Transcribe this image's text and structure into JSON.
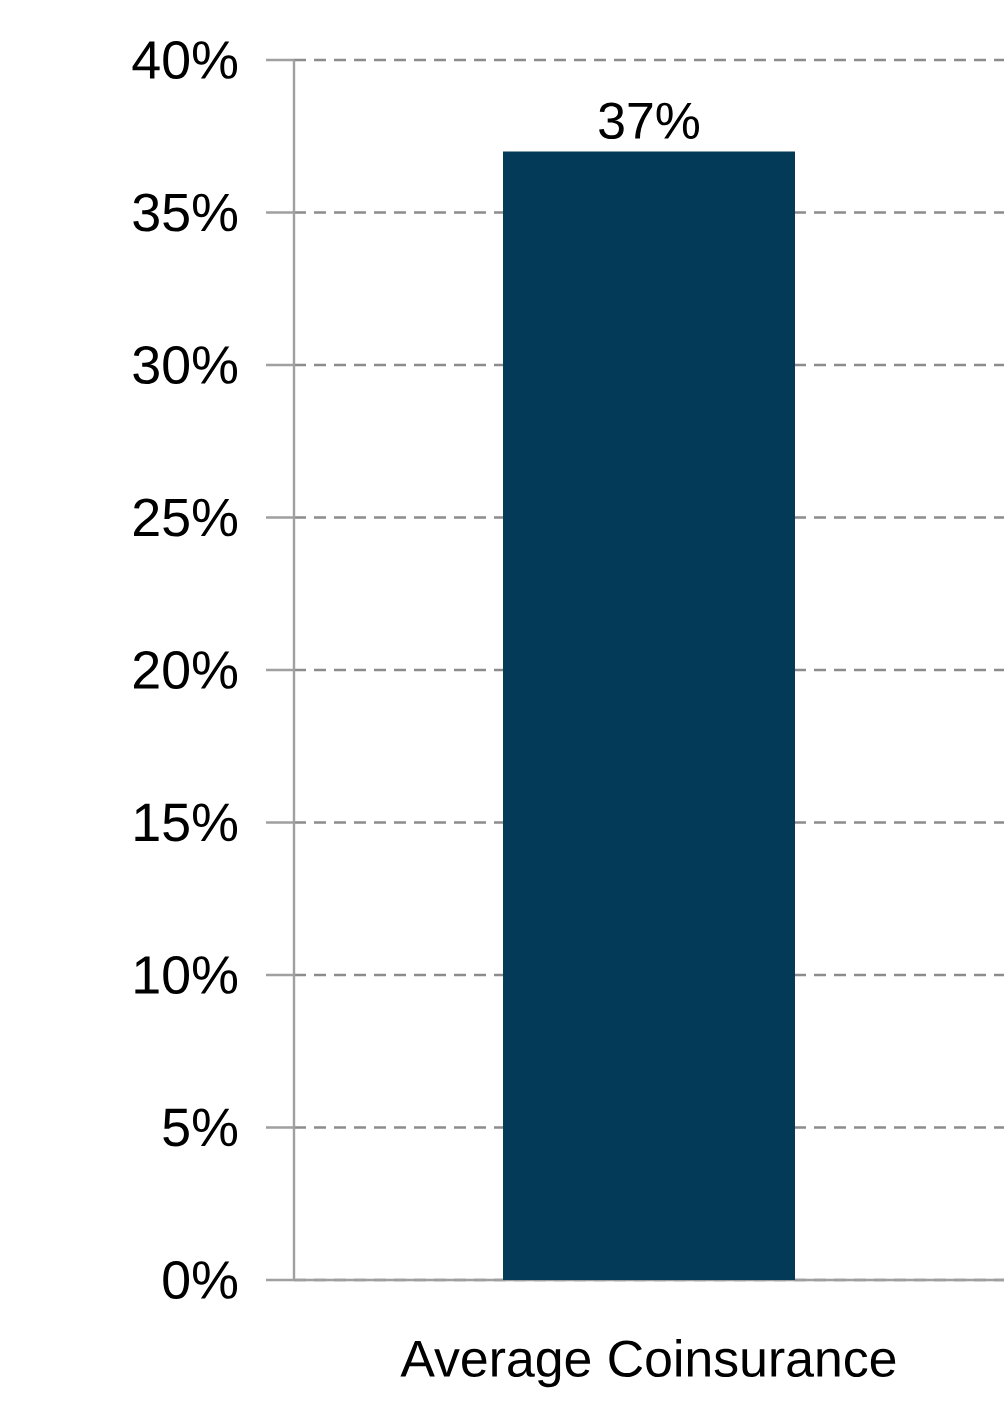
{
  "chart_data": {
    "type": "bar",
    "categories": [
      "Average Coinsurance"
    ],
    "values": [
      37
    ],
    "value_labels": [
      "37%"
    ],
    "color": "#033a57",
    "ylim": [
      0,
      40
    ],
    "yticks": [
      {
        "value": 0,
        "label": "0%"
      },
      {
        "value": 5,
        "label": "5%"
      },
      {
        "value": 10,
        "label": "10%"
      },
      {
        "value": 15,
        "label": "15%"
      },
      {
        "value": 20,
        "label": "20%"
      },
      {
        "value": 25,
        "label": "25%"
      },
      {
        "value": 30,
        "label": "30%"
      },
      {
        "value": 35,
        "label": "35%"
      },
      {
        "value": 40,
        "label": "40%"
      }
    ],
    "grid": "y"
  }
}
